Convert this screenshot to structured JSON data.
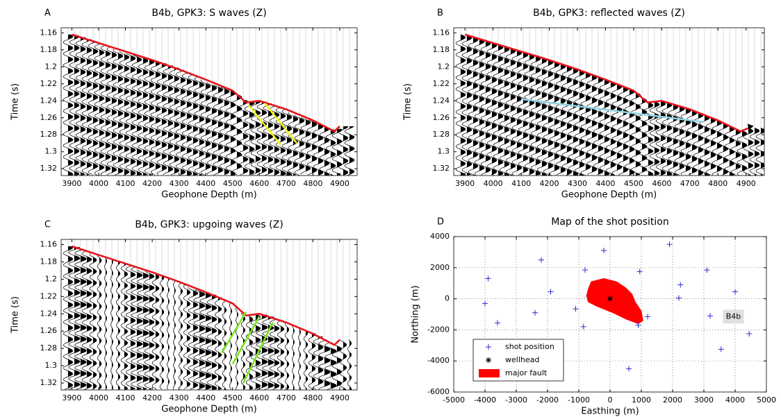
{
  "chart_data": [
    {
      "type": "seismic",
      "panel_label": "A",
      "title": "B4b, GPK3: S waves (Z)",
      "xlabel": "Geophone Depth (m)",
      "ylabel": "Time (s)",
      "xlim": [
        3860,
        4965
      ],
      "ylim": [
        1.154,
        1.328
      ],
      "y_reversed": true,
      "xticks": [
        3900,
        4000,
        4100,
        4200,
        4300,
        4400,
        4500,
        4600,
        4700,
        4800,
        4900
      ],
      "yticks": [
        1.16,
        1.18,
        1.2,
        1.22,
        1.24,
        1.26,
        1.28,
        1.3,
        1.32
      ],
      "series": [
        {
          "color": "#e8141b",
          "x": [
            3900,
            4000,
            4100,
            4200,
            4300,
            4400,
            4500,
            4550,
            4600,
            4700,
            4800,
            4880,
            4900
          ],
          "values": [
            1.162,
            1.172,
            1.182,
            1.192,
            1.203,
            1.215,
            1.228,
            1.242,
            1.24,
            1.25,
            1.263,
            1.276,
            1.27
          ]
        },
        {
          "color": "#f2f21a",
          "x": [
            4560,
            4680
          ],
          "values": [
            1.245,
            1.292
          ]
        },
        {
          "color": "#f2f21a",
          "x": [
            4620,
            4740
          ],
          "values": [
            1.243,
            1.29
          ]
        }
      ]
    },
    {
      "type": "seismic",
      "panel_label": "B",
      "title": "B4b, GPK3: reflected waves (Z)",
      "xlabel": "Geophone Depth (m)",
      "ylabel": "Time (s)",
      "xlim": [
        3860,
        4965
      ],
      "ylim": [
        1.154,
        1.328
      ],
      "y_reversed": true,
      "arrow_end": true,
      "xticks": [
        3900,
        4000,
        4100,
        4200,
        4300,
        4400,
        4500,
        4600,
        4700,
        4800,
        4900
      ],
      "yticks": [
        1.16,
        1.18,
        1.2,
        1.22,
        1.24,
        1.26,
        1.28,
        1.3,
        1.32
      ],
      "series": [
        {
          "color": "#e8141b",
          "x": [
            3900,
            4000,
            4100,
            4200,
            4300,
            4400,
            4500,
            4550,
            4600,
            4700,
            4800,
            4880,
            4910
          ],
          "values": [
            1.162,
            1.172,
            1.182,
            1.192,
            1.203,
            1.215,
            1.228,
            1.242,
            1.24,
            1.25,
            1.263,
            1.276,
            1.272
          ]
        },
        {
          "color": "#8fd3e8",
          "x": [
            4100,
            4750
          ],
          "values": [
            1.238,
            1.265
          ]
        }
      ]
    },
    {
      "type": "seismic",
      "panel_label": "C",
      "title": "B4b, GPK3: upgoing waves (Z)",
      "xlabel": "Geophone Depth (m)",
      "ylabel": "Time (s)",
      "xlim": [
        3860,
        4965
      ],
      "ylim": [
        1.154,
        1.328
      ],
      "y_reversed": true,
      "xticks": [
        3900,
        4000,
        4100,
        4200,
        4300,
        4400,
        4500,
        4600,
        4700,
        4800,
        4900
      ],
      "yticks": [
        1.16,
        1.18,
        1.2,
        1.22,
        1.24,
        1.26,
        1.28,
        1.3,
        1.32
      ],
      "series": [
        {
          "color": "#e8141b",
          "x": [
            3900,
            4000,
            4100,
            4200,
            4300,
            4400,
            4500,
            4550,
            4600,
            4700,
            4800,
            4880,
            4900
          ],
          "values": [
            1.162,
            1.172,
            1.182,
            1.192,
            1.203,
            1.215,
            1.228,
            1.242,
            1.24,
            1.25,
            1.263,
            1.276,
            1.27
          ]
        },
        {
          "color": "#7ae61e",
          "x": [
            4460,
            4550
          ],
          "values": [
            1.285,
            1.238
          ]
        },
        {
          "color": "#7ae61e",
          "x": [
            4500,
            4600
          ],
          "values": [
            1.298,
            1.243
          ]
        },
        {
          "color": "#7ae61e",
          "x": [
            4540,
            4650
          ],
          "values": [
            1.32,
            1.25
          ]
        }
      ]
    },
    {
      "type": "scatter",
      "panel_label": "D",
      "title": "Map of the shot position",
      "xlabel": "Easthing (m)",
      "ylabel": "Northing (m)",
      "xlim": [
        -5000,
        5000
      ],
      "ylim": [
        -6000,
        4000
      ],
      "grid": true,
      "legend": "lower left",
      "xticks": [
        -5000,
        -4000,
        -3000,
        -2000,
        -1000,
        0,
        1000,
        2000,
        3000,
        4000,
        5000
      ],
      "yticks": [
        -6000,
        -4000,
        -2000,
        0,
        2000,
        4000
      ],
      "series": [
        {
          "name": "shot position",
          "color": "#2b2bd0",
          "marker": "plus",
          "x": [
            -3900,
            -4000,
            -3600,
            -2200,
            -1900,
            -2400,
            -1100,
            -850,
            -800,
            -200,
            950,
            1900,
            600,
            900,
            1200,
            2200,
            2250,
            3100,
            3200,
            4000,
            3550,
            4450
          ],
          "values": [
            1300,
            -300,
            -1550,
            2500,
            450,
            -900,
            -650,
            -1800,
            1850,
            3100,
            1750,
            3500,
            -4500,
            -1700,
            -1150,
            50,
            900,
            1850,
            -1100,
            450,
            -3250,
            -2250
          ]
        },
        {
          "name": "wellhead",
          "color": "#000000",
          "marker": "star",
          "x": [
            0
          ],
          "values": [
            0
          ]
        },
        {
          "name": "major fault",
          "color": "#ff0000",
          "marker": "polygon",
          "x": [
            -700,
            -600,
            -200,
            200,
            500,
            700,
            800,
            1000,
            1050,
            900,
            500,
            100,
            -400,
            -700,
            -750
          ],
          "values": [
            600,
            1100,
            1300,
            1100,
            700,
            300,
            -200,
            -800,
            -1400,
            -1600,
            -1300,
            -900,
            -500,
            -200,
            200
          ]
        }
      ],
      "annotations": [
        {
          "text": "B4b",
          "x": 3700,
          "y": -1150
        }
      ]
    }
  ]
}
